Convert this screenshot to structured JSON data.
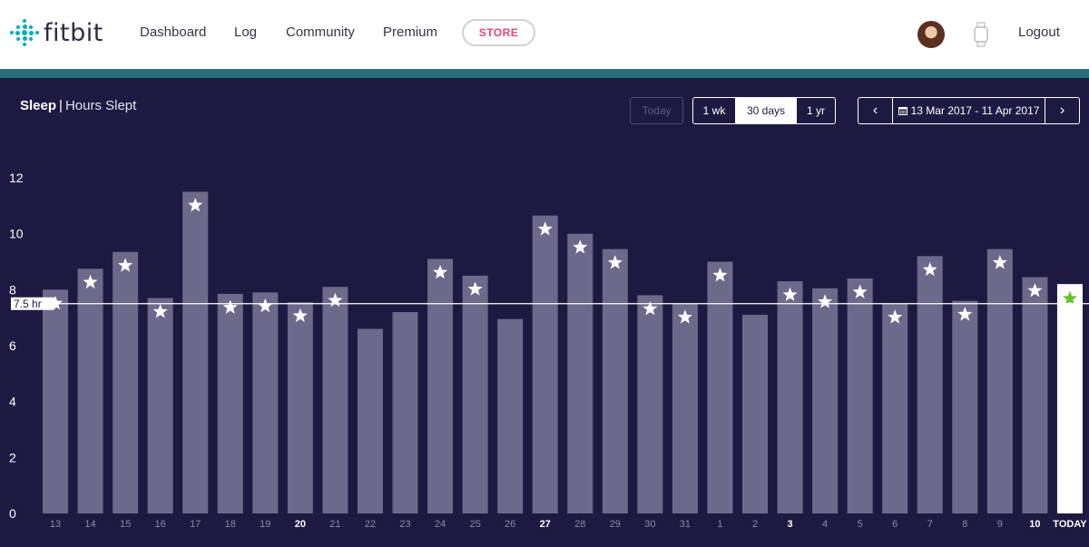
{
  "nav": {
    "logo_text": "fitbit",
    "links": [
      "Dashboard",
      "Log",
      "Community",
      "Premium"
    ],
    "store_label": "STORE",
    "logout_label": "Logout"
  },
  "header": {
    "title": "Sleep",
    "subtitle": "Hours Slept",
    "today_label": "Today",
    "range_options": [
      "1 wk",
      "30 days",
      "1 yr"
    ],
    "selected_range": "30 days",
    "date_range": "13 Mar 2017 - 11 Apr 2017",
    "prev_icon": "chevron-left-icon",
    "next_icon": "chevron-right-icon"
  },
  "colors": {
    "background": "#1d1a42",
    "bar": "#6c698a",
    "today_bar": "#ffffff",
    "star": "#ffffff",
    "today_star": "#63c628",
    "goal_line": "#ffffff",
    "accent": "#27707a",
    "store": "#e0467c"
  },
  "chart_data": {
    "type": "bar",
    "ylim": [
      0,
      12
    ],
    "yticks": [
      0,
      2,
      4,
      6,
      8,
      10,
      12
    ],
    "goal": 7.5,
    "goal_label": "7.5 hr",
    "categories": [
      "13",
      "14",
      "15",
      "16",
      "17",
      "18",
      "19",
      "20",
      "21",
      "22",
      "23",
      "24",
      "25",
      "26",
      "27",
      "28",
      "29",
      "30",
      "31",
      "1",
      "2",
      "3",
      "4",
      "5",
      "6",
      "7",
      "8",
      "9",
      "10",
      "TODAY"
    ],
    "values": [
      8.0,
      8.75,
      9.35,
      7.7,
      11.5,
      7.85,
      7.9,
      7.55,
      8.1,
      6.6,
      7.2,
      9.1,
      8.5,
      6.95,
      10.65,
      10.0,
      9.45,
      7.8,
      7.5,
      9.0,
      7.1,
      8.3,
      8.05,
      8.4,
      7.5,
      9.2,
      7.6,
      9.45,
      8.45,
      8.2
    ],
    "goal_met": [
      true,
      true,
      true,
      true,
      true,
      true,
      true,
      true,
      true,
      false,
      false,
      true,
      true,
      false,
      true,
      true,
      true,
      true,
      true,
      true,
      false,
      true,
      true,
      true,
      true,
      true,
      true,
      true,
      true,
      true
    ],
    "bold_labels": [
      "20",
      "27",
      "3",
      "10",
      "TODAY"
    ]
  }
}
